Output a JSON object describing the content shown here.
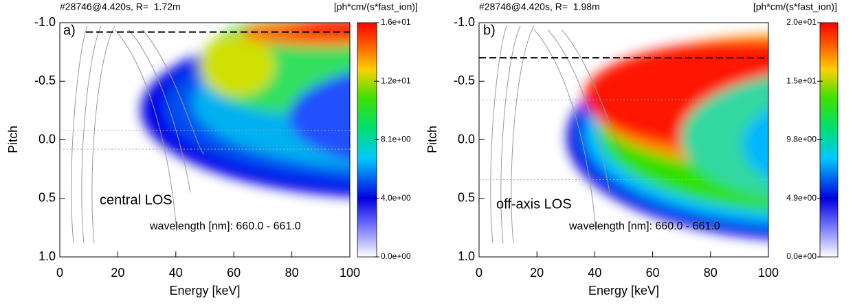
{
  "chart_data": [
    {
      "type": "heatmap",
      "header": "#28746@4.420s, R=  1.72m",
      "colorbar_title": "[ph*cm/(s*fast_ion)]",
      "panel_label": "a)",
      "annotation": "central LOS",
      "wavelength": "wavelength [nm]: 660.0 - 661.0",
      "xlabel": "Energy [keV]",
      "ylabel": "Pitch",
      "xlim": [
        0,
        100
      ],
      "xticks": [
        0,
        20,
        40,
        60,
        80,
        100
      ],
      "ylim": [
        -1,
        1
      ],
      "y_inverted": true,
      "yticks": [
        {
          "value": -1,
          "label": "-1.0"
        },
        -0.5,
        {
          "value": 0,
          "label": "0.0"
        },
        0.5,
        {
          "value": 1,
          "label": "1.0"
        }
      ],
      "zlim": [
        0,
        16.2
      ],
      "zticks": [
        {
          "value": 0,
          "label": "0.0e+00"
        },
        {
          "value": 4.05,
          "label": "4.0e+00"
        },
        {
          "value": 8.1,
          "label": "8.1e+00"
        },
        {
          "value": 12.15,
          "label": "1.2e+01"
        },
        {
          "value": 16.2,
          "label": "1.6e+01"
        }
      ],
      "dashed_line": -0.92,
      "dotted_lines": [
        -0.08,
        0.08
      ]
    },
    {
      "type": "heatmap",
      "header": "#28746@4.420s, R=  1.98m",
      "colorbar_title": "[ph*cm/(s*fast_ion)]",
      "panel_label": "b)",
      "annotation": "off-axis LOS",
      "wavelength": "wavelength [nm]: 660.0 - 661.0",
      "xlabel": "Energy [keV]",
      "ylabel": "Pitch",
      "xlim": [
        0,
        100
      ],
      "xticks": [
        0,
        20,
        40,
        60,
        80,
        100
      ],
      "ylim": [
        -1,
        1
      ],
      "y_inverted": true,
      "yticks": [
        {
          "value": -1,
          "label": "-1.0"
        },
        -0.5,
        {
          "value": 0,
          "label": "0.0"
        },
        0.5,
        {
          "value": 1,
          "label": "1.0"
        }
      ],
      "zlim": [
        0,
        19.6
      ],
      "zticks": [
        {
          "value": 0,
          "label": "0.0e+00"
        },
        {
          "value": 4.9,
          "label": "4.9e+00"
        },
        {
          "value": 9.8,
          "label": "9.8e+00"
        },
        {
          "value": 14.7,
          "label": "1.5e+01"
        },
        {
          "value": 19.6,
          "label": "2.0e+01"
        }
      ],
      "dashed_line": -0.7,
      "dotted_lines": [
        -0.34,
        0.34
      ]
    }
  ]
}
